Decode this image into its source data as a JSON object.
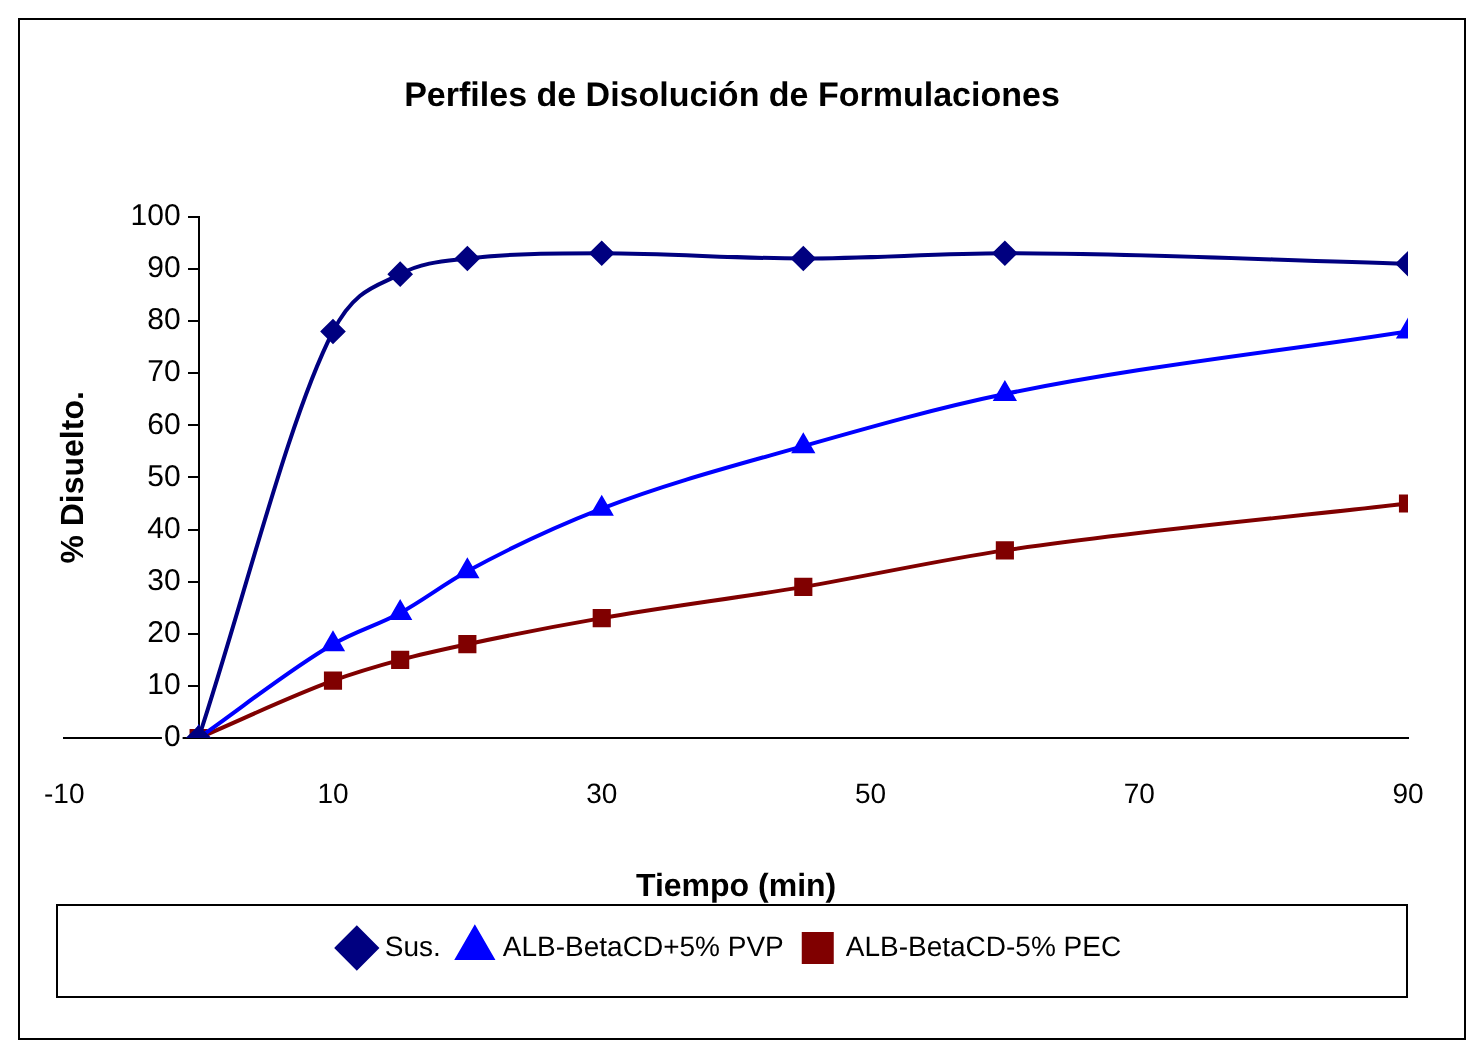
{
  "chart_data": {
    "type": "line",
    "title": "Perfiles de Disolución de Formulaciones",
    "xlabel": "Tiempo (min)",
    "ylabel": "% Disuelto.",
    "x": [
      0,
      10,
      15,
      20,
      30,
      45,
      60,
      90
    ],
    "series": [
      {
        "name": "Sus.",
        "color": "#000080",
        "marker": "diamond",
        "values": [
          0,
          78,
          89,
          92,
          93,
          92,
          93,
          91
        ]
      },
      {
        "name": "ALB-BetaCD+5% PVP",
        "color": "#0000ff",
        "marker": "triangle",
        "values": [
          0,
          18,
          24,
          32,
          44,
          56,
          66,
          78
        ]
      },
      {
        "name": "ALB-BetaCD-5% PEC",
        "color": "#800000",
        "marker": "square",
        "values": [
          0,
          11,
          15,
          18,
          23,
          29,
          36,
          45
        ]
      }
    ],
    "xlim": [
      -10,
      90
    ],
    "xticks": [
      -10,
      10,
      30,
      50,
      70,
      90
    ],
    "ylim": [
      0,
      100
    ],
    "yticks": [
      0,
      10,
      20,
      30,
      40,
      50,
      60,
      70,
      80,
      90,
      100
    ],
    "grid": false,
    "legend": "bottom",
    "line_style": "solid"
  }
}
